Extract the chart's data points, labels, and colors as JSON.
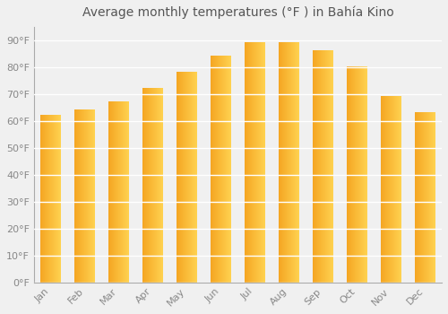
{
  "months": [
    "Jan",
    "Feb",
    "Mar",
    "Apr",
    "May",
    "Jun",
    "Jul",
    "Aug",
    "Sep",
    "Oct",
    "Nov",
    "Dec"
  ],
  "values": [
    62,
    64,
    67,
    72,
    78,
    84,
    89,
    89,
    86,
    80,
    69,
    63
  ],
  "title": "Average monthly temperatures (°F ) in Bahía Kino",
  "ylabel_ticks": [
    "0°F",
    "10°F",
    "20°F",
    "30°F",
    "40°F",
    "50°F",
    "60°F",
    "70°F",
    "80°F",
    "90°F"
  ],
  "ytick_values": [
    0,
    10,
    20,
    30,
    40,
    50,
    60,
    70,
    80,
    90
  ],
  "ylim": [
    0,
    95
  ],
  "background_color": "#f0f0f0",
  "grid_color": "#ffffff",
  "bar_color_left": "#F5A623",
  "bar_color_right": "#FFD966",
  "title_fontsize": 10,
  "tick_fontsize": 8,
  "bar_width": 0.6
}
